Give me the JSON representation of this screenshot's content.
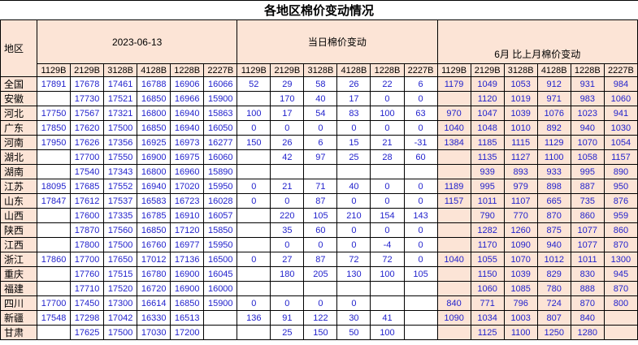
{
  "title": "各地区棉价变动情况",
  "colors": {
    "header_bg": "#FCE4D6",
    "number_text": "#2222CC",
    "grid_line": "#000000"
  },
  "table": {
    "region_header": "地区",
    "groups": [
      {
        "label": "2023-06-13",
        "columns": [
          "1129B",
          "2129B",
          "3128B",
          "4128B",
          "1228B",
          "2227B"
        ]
      },
      {
        "label": "当日棉价变动",
        "columns": [
          "1129B",
          "2129B",
          "3128B",
          "4128B",
          "1228B",
          "2227B"
        ]
      },
      {
        "label": "6月 比上月棉价变动",
        "columns": [
          "1129B",
          "2129B",
          "3128B",
          "4128B",
          "1228B",
          "2227B"
        ]
      }
    ],
    "rows": [
      {
        "region": "全国",
        "date": [
          "17891",
          "17678",
          "17461",
          "16788",
          "16906",
          "16066"
        ],
        "daily": [
          "52",
          "29",
          "58",
          "26",
          "22",
          "6"
        ],
        "june": [
          "1179",
          "1049",
          "1053",
          "912",
          "931",
          "984"
        ]
      },
      {
        "region": "安徽",
        "date": [
          "",
          "17730",
          "17521",
          "16850",
          "16966",
          "15900"
        ],
        "daily": [
          "",
          "170",
          "40",
          "17",
          "0",
          "0"
        ],
        "june": [
          "",
          "1120",
          "1019",
          "971",
          "983",
          "1060"
        ]
      },
      {
        "region": "河北",
        "date": [
          "17750",
          "17567",
          "17321",
          "16800",
          "16940",
          "15863"
        ],
        "daily": [
          "100",
          "17",
          "54",
          "83",
          "100",
          "63"
        ],
        "june": [
          "970",
          "1047",
          "1039",
          "1076",
          "1023",
          "941"
        ]
      },
      {
        "region": "广东",
        "date": [
          "17850",
          "17620",
          "17500",
          "16850",
          "16940",
          "16050"
        ],
        "daily": [
          "0",
          "0",
          "0",
          "0",
          "0",
          "0"
        ],
        "june": [
          "1040",
          "1048",
          "1010",
          "892",
          "940",
          "1030"
        ]
      },
      {
        "region": "河南",
        "date": [
          "17950",
          "17626",
          "17356",
          "16925",
          "16973",
          "16277"
        ],
        "daily": [
          "150",
          "26",
          "6",
          "15",
          "21",
          "-31"
        ],
        "june": [
          "1384",
          "1185",
          "1115",
          "1129",
          "1070",
          "1054"
        ]
      },
      {
        "region": "湖北",
        "date": [
          "",
          "17700",
          "17550",
          "16900",
          "16975",
          "16060"
        ],
        "daily": [
          "",
          "42",
          "97",
          "25",
          "28",
          "60"
        ],
        "june": [
          "",
          "1135",
          "1127",
          "1100",
          "1058",
          "1157"
        ]
      },
      {
        "region": "湖南",
        "date": [
          "",
          "17540",
          "17343",
          "16800",
          "16960",
          "15890"
        ],
        "daily": [
          "",
          "",
          "",
          "",
          "",
          ""
        ],
        "june": [
          "",
          "939",
          "893",
          "933",
          "995",
          "890"
        ]
      },
      {
        "region": "江苏",
        "date": [
          "18095",
          "17685",
          "17552",
          "16940",
          "17020",
          "15950"
        ],
        "daily": [
          "0",
          "21",
          "71",
          "40",
          "0",
          "0"
        ],
        "june": [
          "1189",
          "995",
          "979",
          "898",
          "887",
          "950"
        ]
      },
      {
        "region": "山东",
        "date": [
          "17847",
          "17612",
          "17537",
          "16583",
          "16723",
          "16028"
        ],
        "daily": [
          "0",
          "0",
          "87",
          "0",
          "0",
          "0"
        ],
        "june": [
          "1157",
          "1011",
          "1107",
          "665",
          "735",
          "876"
        ]
      },
      {
        "region": "山西",
        "date": [
          "",
          "17600",
          "17335",
          "16785",
          "16910",
          "16057"
        ],
        "daily": [
          "",
          "220",
          "105",
          "210",
          "154",
          "143"
        ],
        "june": [
          "",
          "790",
          "770",
          "870",
          "860",
          "959"
        ]
      },
      {
        "region": "陕西",
        "date": [
          "",
          "17870",
          "17560",
          "16850",
          "17120",
          "15850"
        ],
        "daily": [
          "",
          "35",
          "60",
          "0",
          "0",
          "0"
        ],
        "june": [
          "",
          "1282",
          "1260",
          "875",
          "1077",
          "860"
        ]
      },
      {
        "region": "江西",
        "date": [
          "",
          "17800",
          "17500",
          "16760",
          "16977",
          "15950"
        ],
        "daily": [
          "",
          "0",
          "0",
          "0",
          "-4",
          "0"
        ],
        "june": [
          "",
          "1170",
          "1090",
          "940",
          "1077",
          "870"
        ]
      },
      {
        "region": "浙江",
        "date": [
          "17860",
          "17700",
          "17650",
          "17012",
          "17136",
          "16500"
        ],
        "daily": [
          "0",
          "27",
          "87",
          "72",
          "72",
          "0"
        ],
        "june": [
          "1040",
          "1055",
          "1070",
          "1012",
          "1011",
          "1300"
        ]
      },
      {
        "region": "重庆",
        "date": [
          "",
          "17760",
          "17515",
          "16780",
          "16900",
          "16045"
        ],
        "daily": [
          "",
          "180",
          "205",
          "130",
          "100",
          "105"
        ],
        "june": [
          "",
          "1150",
          "1039",
          "829",
          "830",
          "945"
        ]
      },
      {
        "region": "福建",
        "date": [
          "",
          "17710",
          "17520",
          "16720",
          "16900",
          "16000"
        ],
        "daily": [
          "",
          "",
          "",
          "",
          "",
          ""
        ],
        "june": [
          "",
          "1060",
          "1085",
          "780",
          "888",
          "870"
        ]
      },
      {
        "region": "四川",
        "date": [
          "17700",
          "17450",
          "17300",
          "16614",
          "16850",
          "15900"
        ],
        "daily": [
          "0",
          "0",
          "0",
          "0",
          "",
          ""
        ],
        "june": [
          "840",
          "771",
          "796",
          "724",
          "870",
          "800"
        ]
      },
      {
        "region": "新疆",
        "date": [
          "17548",
          "17298",
          "17042",
          "16330",
          "16513",
          ""
        ],
        "daily": [
          "136",
          "91",
          "122",
          "30",
          "41",
          ""
        ],
        "june": [
          "1090",
          "1034",
          "1003",
          "807",
          "840",
          ""
        ]
      },
      {
        "region": "甘肃",
        "date": [
          "",
          "17625",
          "17500",
          "17030",
          "17200",
          ""
        ],
        "daily": [
          "",
          "25",
          "150",
          "50",
          "100",
          ""
        ],
        "june": [
          "",
          "1125",
          "1100",
          "1250",
          "1280",
          ""
        ]
      }
    ]
  }
}
